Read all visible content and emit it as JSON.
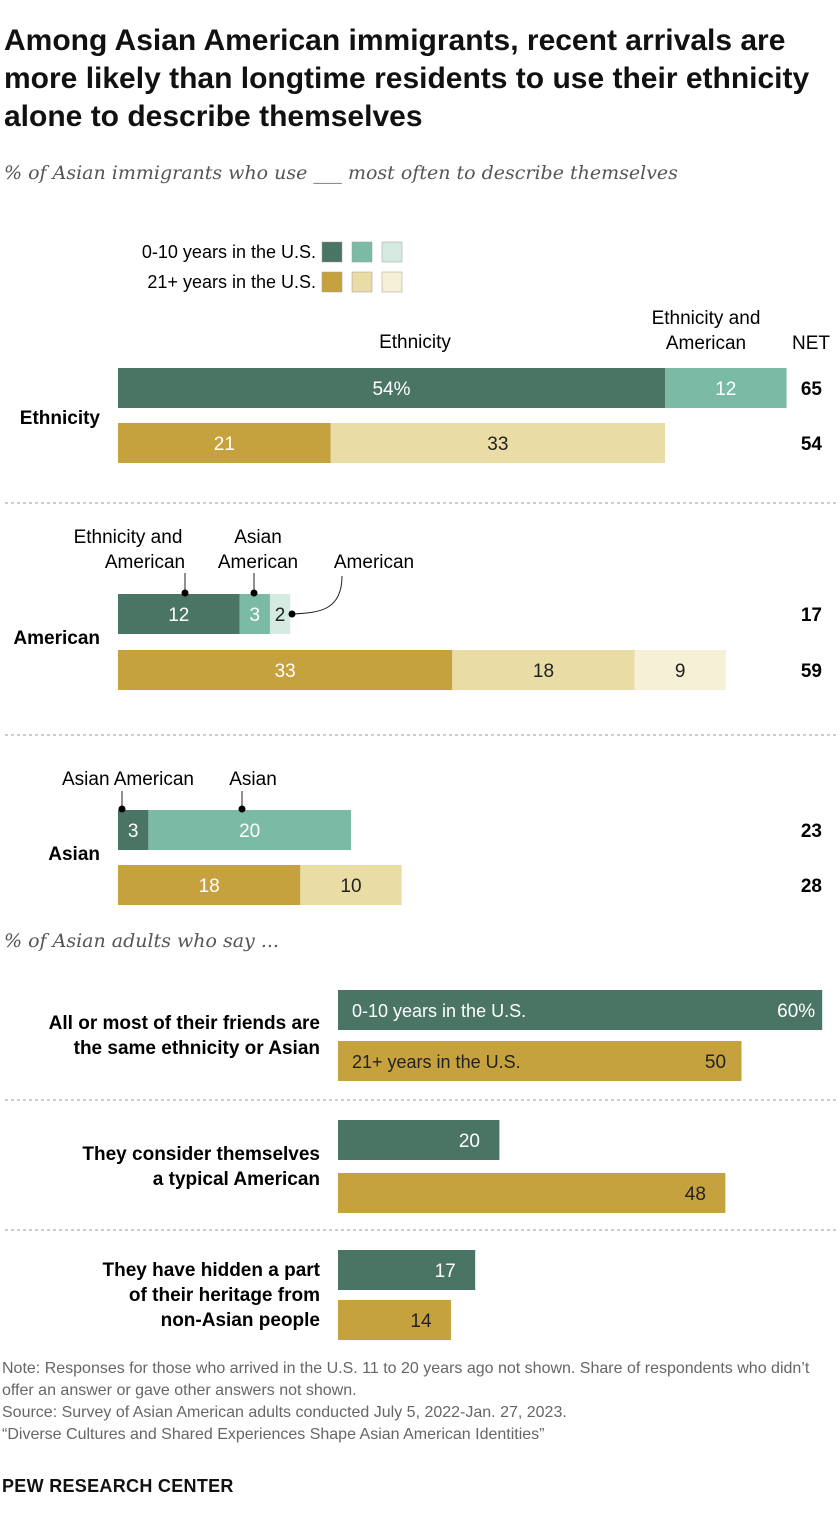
{
  "title": "Among Asian American immigrants, recent arrivals are more likely than longtime residents to use their ethnicity alone to describe themselves",
  "subtitle": "% of Asian immigrants who use ___ most often to describe themselves",
  "subtitle2": "% of Asian adults who say ...",
  "note": "Note: Responses for those who arrived in the U.S. 11 to 20 years ago not shown. Share of respondents who didn’t offer an answer or gave other answers not shown.",
  "source": "Source: Survey of Asian American adults conducted July 5, 2022-Jan. 27, 2023.",
  "report": "“Diverse Cultures and Shared Experiences Shape Asian American Identities”",
  "brand": "PEW RESEARCH CENTER",
  "colors": {
    "green": [
      "#4a7565",
      "#7bbaa5",
      "#d5ebe2"
    ],
    "gold": [
      "#c5a23e",
      "#e9dca5",
      "#f6f0d6"
    ]
  },
  "chart_data": [
    {
      "type": "bar",
      "stacked": true,
      "legend": [
        "0-10 years in the U.S.",
        "21+ years in the U.S."
      ],
      "net_label": "NET",
      "groups": [
        {
          "label": "Ethnicity",
          "segment_labels": [
            "Ethnicity",
            "Ethnicity and American"
          ],
          "series": [
            {
              "name": "0-10 years in the U.S.",
              "values": [
                54,
                12
              ],
              "net": 65,
              "value_labels": [
                "54%",
                "12"
              ]
            },
            {
              "name": "21+ years in the U.S.",
              "values": [
                21,
                33
              ],
              "net": 54,
              "value_labels": [
                "21",
                "33"
              ]
            }
          ]
        },
        {
          "label": "American",
          "segment_labels": [
            "Ethnicity and American",
            "Asian American",
            "American"
          ],
          "series": [
            {
              "name": "0-10 years in the U.S.",
              "values": [
                12,
                3,
                2
              ],
              "net": 17,
              "value_labels": [
                "12",
                "3",
                "2"
              ]
            },
            {
              "name": "21+ years in the U.S.",
              "values": [
                33,
                18,
                9
              ],
              "net": 59,
              "value_labels": [
                "33",
                "18",
                "9"
              ]
            }
          ]
        },
        {
          "label": "Asian",
          "segment_labels": [
            "Asian American",
            "Asian"
          ],
          "series": [
            {
              "name": "0-10 years in the U.S.",
              "values": [
                3,
                20
              ],
              "net": 23,
              "value_labels": [
                "3",
                "20"
              ]
            },
            {
              "name": "21+ years in the U.S.",
              "values": [
                18,
                10
              ],
              "net": 28,
              "value_labels": [
                "18",
                "10"
              ]
            }
          ]
        }
      ]
    },
    {
      "type": "bar",
      "categories": [
        "All or most of their friends are the same ethnicity or Asian",
        "They consider themselves a typical American",
        "They have hidden a part of their heritage from non-Asian people"
      ],
      "series": [
        {
          "name": "0-10 years in the U.S.",
          "values": [
            60,
            20,
            17
          ],
          "value_labels": [
            "60%",
            "20",
            "17"
          ]
        },
        {
          "name": "21+ years in the U.S.",
          "values": [
            50,
            48,
            14
          ],
          "value_labels": [
            "50",
            "48",
            "14"
          ]
        }
      ]
    }
  ]
}
